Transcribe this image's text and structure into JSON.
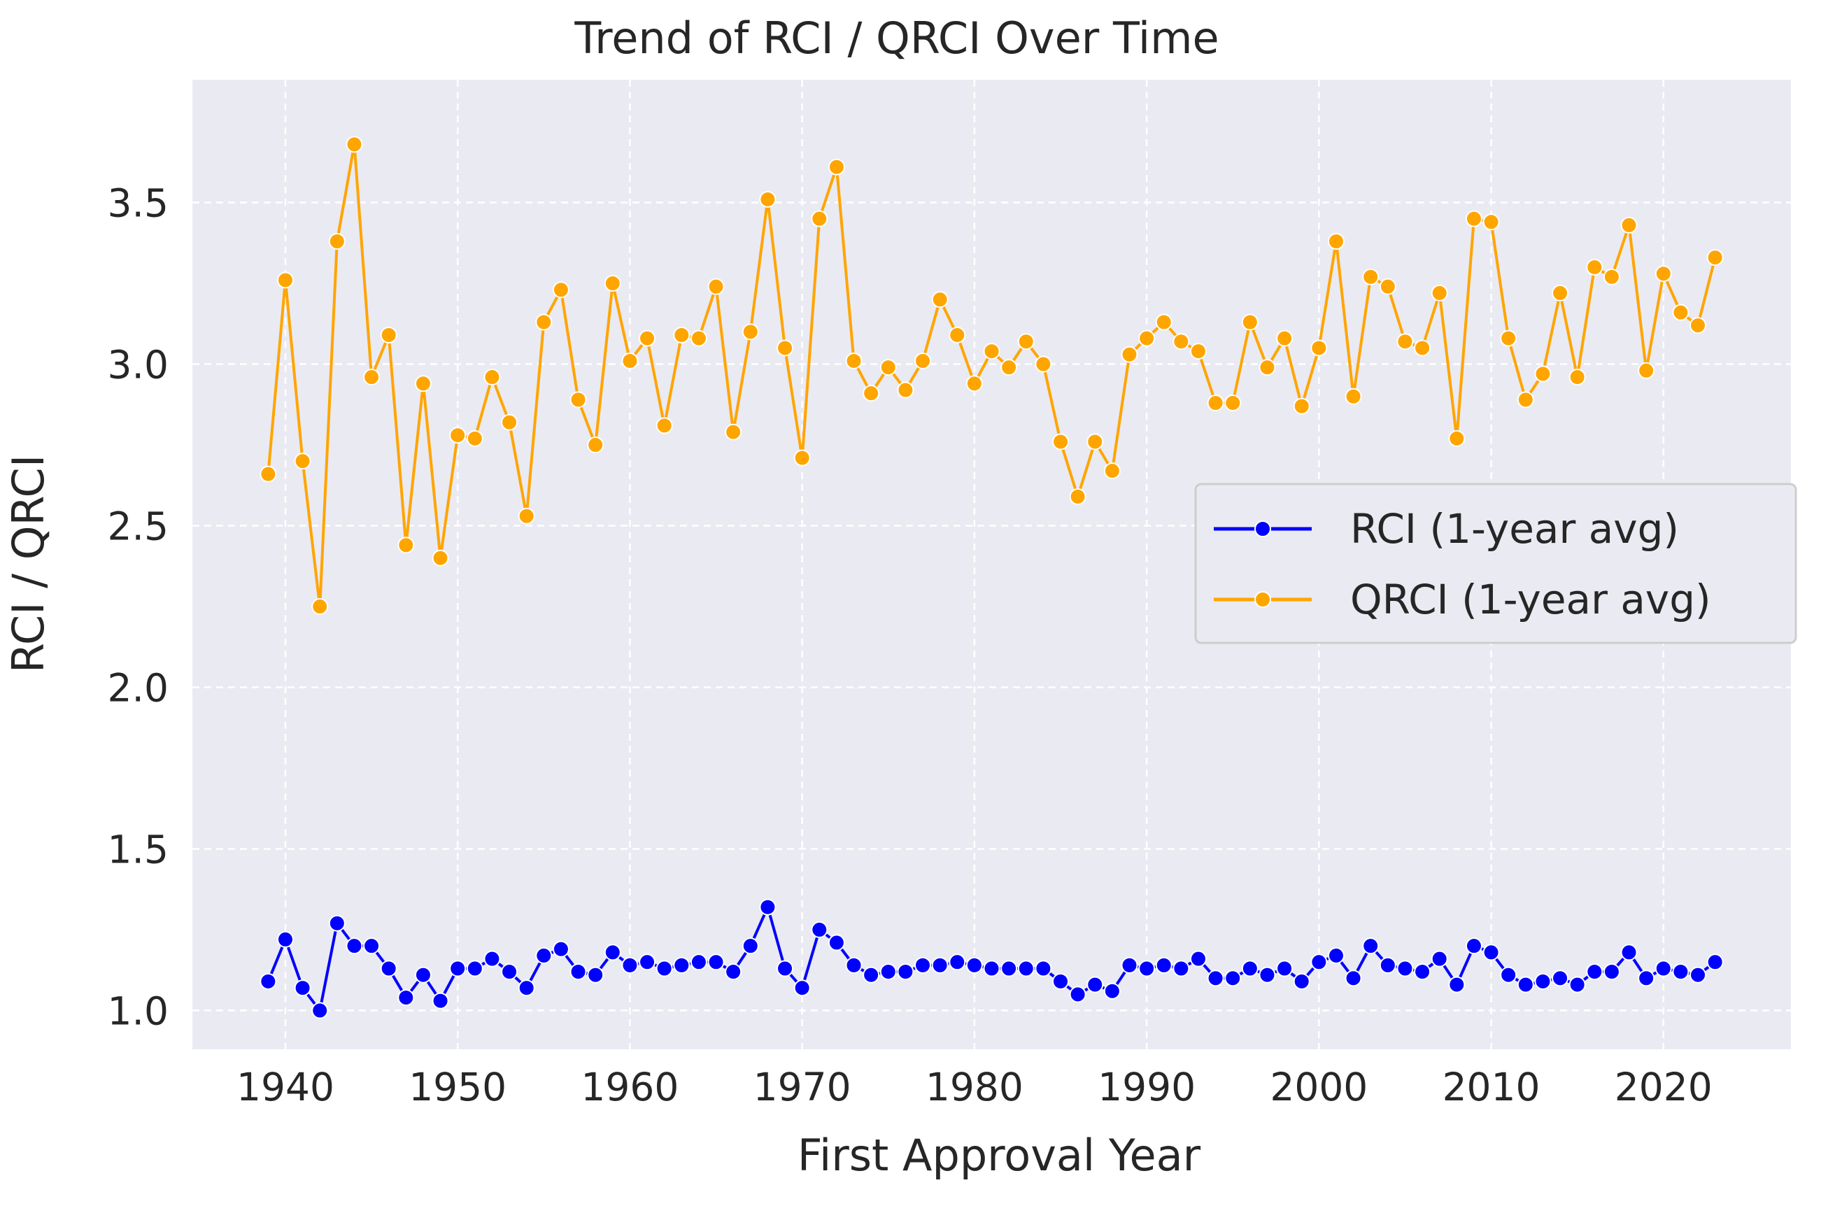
{
  "chart_data": {
    "type": "line",
    "title": "Trend of RCI / QRCI Over Time",
    "xlabel": "First Approval Year",
    "ylabel": "RCI / QRCI",
    "xlim": [
      1934.6,
      2027.4
    ],
    "ylim": [
      0.88,
      3.88
    ],
    "xticks": [
      1940,
      1950,
      1960,
      1970,
      1980,
      1990,
      2000,
      2010,
      2020
    ],
    "yticks": [
      1.0,
      1.5,
      2.0,
      2.5,
      3.0,
      3.5
    ],
    "ytick_labels": [
      "1.0",
      "1.5",
      "2.0",
      "2.5",
      "3.0",
      "3.5"
    ],
    "grid": true,
    "legend_position": "center-right",
    "x": [
      1939,
      1940,
      1941,
      1942,
      1943,
      1944,
      1945,
      1946,
      1947,
      1948,
      1949,
      1950,
      1951,
      1952,
      1953,
      1954,
      1955,
      1956,
      1957,
      1958,
      1959,
      1960,
      1961,
      1962,
      1963,
      1964,
      1965,
      1966,
      1967,
      1968,
      1969,
      1970,
      1971,
      1972,
      1973,
      1974,
      1975,
      1976,
      1977,
      1978,
      1979,
      1980,
      1981,
      1982,
      1983,
      1984,
      1985,
      1986,
      1987,
      1988,
      1989,
      1990,
      1991,
      1992,
      1993,
      1994,
      1995,
      1996,
      1997,
      1998,
      1999,
      2000,
      2001,
      2002,
      2003,
      2004,
      2005,
      2006,
      2007,
      2008,
      2009,
      2010,
      2011,
      2012,
      2013,
      2014,
      2015,
      2016,
      2017,
      2018,
      2019,
      2020,
      2021,
      2022,
      2023
    ],
    "series": [
      {
        "name": "RCI (1-year avg)",
        "color": "#0000ff",
        "values": [
          1.09,
          1.22,
          1.07,
          1.0,
          1.27,
          1.2,
          1.2,
          1.13,
          1.04,
          1.11,
          1.03,
          1.13,
          1.13,
          1.16,
          1.12,
          1.07,
          1.17,
          1.19,
          1.12,
          1.11,
          1.18,
          1.14,
          1.15,
          1.13,
          1.14,
          1.15,
          1.15,
          1.12,
          1.2,
          1.32,
          1.13,
          1.07,
          1.25,
          1.21,
          1.14,
          1.11,
          1.12,
          1.12,
          1.14,
          1.14,
          1.15,
          1.14,
          1.13,
          1.13,
          1.13,
          1.13,
          1.09,
          1.05,
          1.08,
          1.06,
          1.14,
          1.13,
          1.14,
          1.13,
          1.16,
          1.1,
          1.1,
          1.13,
          1.11,
          1.13,
          1.09,
          1.15,
          1.17,
          1.1,
          1.2,
          1.14,
          1.13,
          1.12,
          1.16,
          1.08,
          1.2,
          1.18,
          1.11,
          1.08,
          1.09,
          1.1,
          1.08,
          1.12,
          1.12,
          1.18,
          1.1,
          1.13,
          1.12,
          1.11,
          1.15
        ]
      },
      {
        "name": "QRCI (1-year avg)",
        "color": "#ffa500",
        "values": [
          2.66,
          3.26,
          2.7,
          2.25,
          3.38,
          3.68,
          2.96,
          3.09,
          2.44,
          2.94,
          2.4,
          2.78,
          2.77,
          2.96,
          2.82,
          2.53,
          3.13,
          3.23,
          2.89,
          2.75,
          3.25,
          3.01,
          3.08,
          2.81,
          3.09,
          3.08,
          3.24,
          2.79,
          3.1,
          3.51,
          3.05,
          2.71,
          3.45,
          3.61,
          3.01,
          2.91,
          2.99,
          2.92,
          3.01,
          3.2,
          3.09,
          2.94,
          3.04,
          2.99,
          3.07,
          3.0,
          2.76,
          2.59,
          2.76,
          2.67,
          3.03,
          3.08,
          3.13,
          3.07,
          3.04,
          2.88,
          2.88,
          3.13,
          2.99,
          3.08,
          2.87,
          3.05,
          3.38,
          2.9,
          3.27,
          3.24,
          3.07,
          3.05,
          3.22,
          2.77,
          3.45,
          3.44,
          3.08,
          2.89,
          2.97,
          3.22,
          2.96,
          3.3,
          3.27,
          3.43,
          2.98,
          3.28,
          3.16,
          3.12,
          3.33
        ]
      }
    ]
  }
}
